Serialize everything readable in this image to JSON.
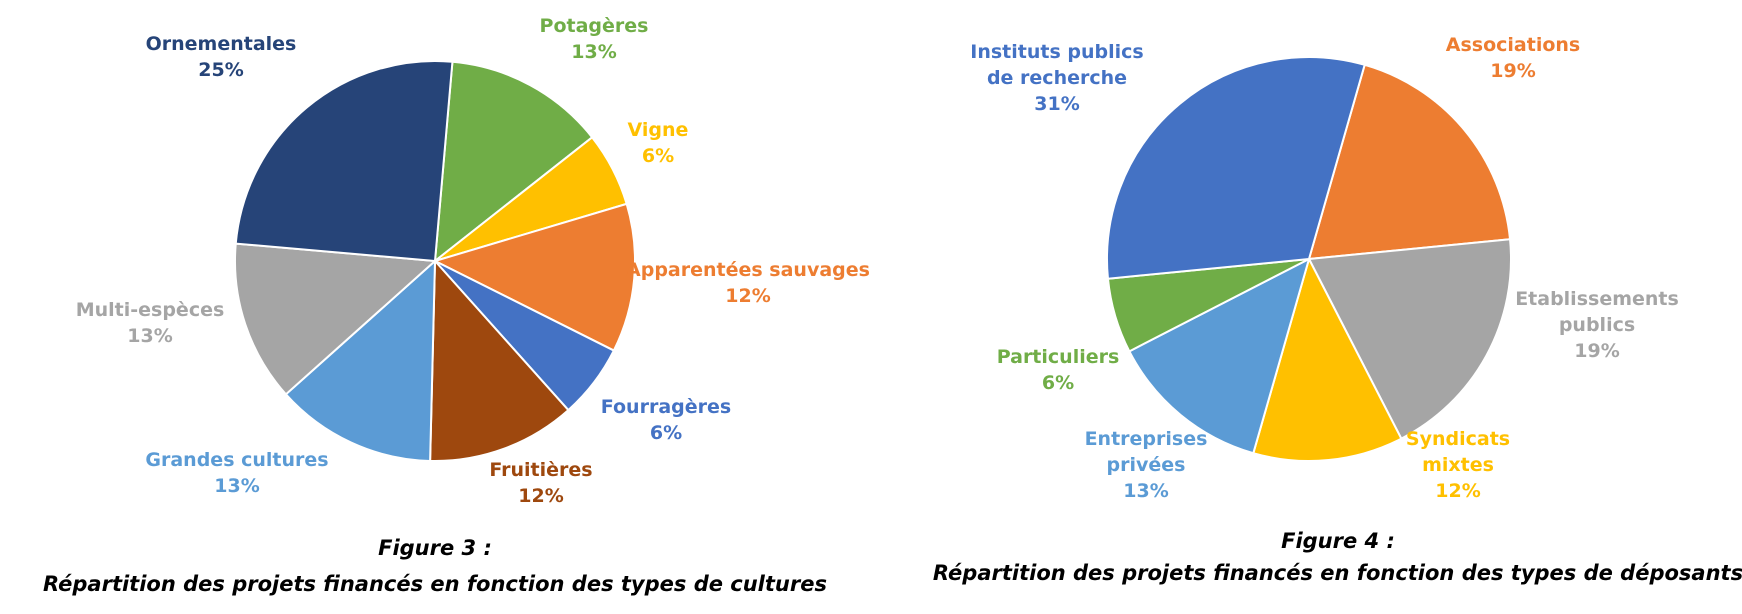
{
  "chart_data": [
    {
      "type": "pie",
      "caption_line1": "Figure 3 :",
      "caption_line2": "Répartition des projets financés en fonction des types de cultures",
      "slices": [
        {
          "label": [
            "Potagères"
          ],
          "value": 13,
          "value_label": "13%",
          "color": "#70AD47"
        },
        {
          "label": [
            "Vigne"
          ],
          "value": 6,
          "value_label": "6%",
          "color": "#FFC000"
        },
        {
          "label": [
            "Apparentées sauvages"
          ],
          "value": 12,
          "value_label": "12%",
          "color": "#ED7D31"
        },
        {
          "label": [
            "Fourragères"
          ],
          "value": 6,
          "value_label": "6%",
          "color": "#4472C4"
        },
        {
          "label": [
            "Fruitières"
          ],
          "value": 12,
          "value_label": "12%",
          "color": "#9E480E"
        },
        {
          "label": [
            "Grandes cultures"
          ],
          "value": 13,
          "value_label": "13%",
          "color": "#5B9BD5"
        },
        {
          "label": [
            "Multi-espèces"
          ],
          "value": 13,
          "value_label": "13%",
          "color": "#A5A5A5"
        },
        {
          "label": [
            "Ornementales"
          ],
          "value": 25,
          "value_label": "25%",
          "color": "#264478"
        }
      ]
    },
    {
      "type": "pie",
      "caption_line1": "Figure 4 :",
      "caption_line2": "Répartition des projets financés en fonction des types de déposants",
      "slices": [
        {
          "label": [
            "Associations"
          ],
          "value": 19,
          "value_label": "19%",
          "color": "#ED7D31"
        },
        {
          "label": [
            "Etablissements",
            "publics"
          ],
          "value": 19,
          "value_label": "19%",
          "color": "#A5A5A5"
        },
        {
          "label": [
            "Syndicats",
            "mixtes"
          ],
          "value": 12,
          "value_label": "12%",
          "color": "#FFC000"
        },
        {
          "label": [
            "Entreprises",
            "privées"
          ],
          "value": 13,
          "value_label": "13%",
          "color": "#5B9BD5"
        },
        {
          "label": [
            "Particuliers"
          ],
          "value": 6,
          "value_label": "6%",
          "color": "#70AD47"
        },
        {
          "label": [
            "Instituts publics",
            "de recherche"
          ],
          "value": 31,
          "value_label": "31%",
          "color": "#4472C4"
        }
      ]
    }
  ]
}
